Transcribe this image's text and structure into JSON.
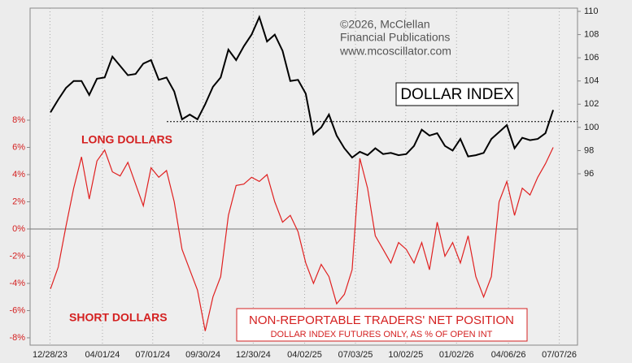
{
  "chart_data": {
    "type": "line",
    "credit": [
      "©2026, McClellan",
      "Financial Publications",
      "www.mcoscillator.com"
    ],
    "title": "DOLLAR INDEX",
    "annotations": [
      "LONG DOLLARS",
      "SHORT DOLLARS"
    ],
    "subtitle_box": [
      "NON-REPORTABLE TRADERS' NET POSITION",
      "DOLLAR INDEX FUTURES ONLY, AS % OF OPEN INT"
    ],
    "x": [
      "12/29/23",
      "01/12/24",
      "01/26/24",
      "02/09/24",
      "02/23/24",
      "03/08/24",
      "03/22/24",
      "04/05/24",
      "04/19/24",
      "05/03/24",
      "05/17/24",
      "05/31/24",
      "06/14/24",
      "06/28/24",
      "07/12/24",
      "07/26/24",
      "08/09/24",
      "08/23/24",
      "09/06/24",
      "09/20/24",
      "10/04/24",
      "10/18/24",
      "11/01/24",
      "11/15/24",
      "11/29/24",
      "12/13/24",
      "12/27/24",
      "01/10/25",
      "01/24/25",
      "02/07/25",
      "02/21/25",
      "03/07/25",
      "03/21/25",
      "04/04/25",
      "04/18/25",
      "05/02/25",
      "05/16/25",
      "05/30/25",
      "06/13/25",
      "06/27/25",
      "07/11/25",
      "07/25/25",
      "08/08/25",
      "08/22/25",
      "09/05/25",
      "09/19/25",
      "10/03/25",
      "10/17/25",
      "10/31/25",
      "11/14/25",
      "11/28/25",
      "12/12/25",
      "12/26/25",
      "01/09/26",
      "01/23/26",
      "02/06/26",
      "02/20/26",
      "03/06/26",
      "03/20/26",
      "04/03/26",
      "04/17/26",
      "05/01/26",
      "05/15/26",
      "05/29/26",
      "06/12/26",
      "06/26/26"
    ],
    "series": [
      {
        "name": "DOLLAR INDEX",
        "color": "#000000",
        "axis": "y2",
        "values": [
          101.3,
          102.4,
          103.4,
          104.0,
          104.0,
          102.8,
          104.2,
          104.3,
          106.1,
          105.3,
          104.5,
          104.6,
          105.5,
          105.8,
          104.1,
          104.3,
          103.1,
          100.7,
          101.1,
          100.7,
          102.0,
          103.5,
          104.3,
          106.7,
          105.8,
          107.0,
          108.0,
          109.5,
          107.4,
          108.0,
          106.6,
          104.0,
          104.1,
          102.9,
          99.4,
          100.0,
          101.1,
          99.3,
          98.2,
          97.4,
          97.9,
          97.6,
          98.2,
          97.7,
          97.8,
          97.6,
          97.7,
          98.4,
          99.8,
          99.3,
          99.5,
          98.4,
          98.0,
          99.0,
          97.5,
          97.6,
          97.8,
          99.0,
          99.6,
          100.2,
          98.2,
          99.1,
          98.9,
          99.0,
          99.5,
          101.5
        ]
      },
      {
        "name": "NON-REPORTABLE TRADERS' NET POSITION",
        "color": "#e02020",
        "axis": "y",
        "values": [
          -4.4,
          -2.8,
          0.2,
          3.0,
          5.3,
          2.2,
          5.0,
          5.8,
          4.2,
          3.9,
          4.9,
          3.3,
          1.7,
          4.5,
          3.8,
          4.3,
          2.0,
          -1.5,
          -3.0,
          -4.5,
          -7.5,
          -5.0,
          -3.5,
          1.0,
          3.2,
          3.3,
          3.8,
          3.5,
          4.0,
          2.0,
          0.5,
          1.0,
          -0.2,
          -2.5,
          -4.0,
          -2.6,
          -3.5,
          -5.5,
          -4.8,
          -3.0,
          5.2,
          3.0,
          -0.5,
          -1.5,
          -2.5,
          -1.0,
          -1.5,
          -2.5,
          -1.0,
          -3.0,
          0.5,
          -2.0,
          -1.0,
          -2.5,
          -0.5,
          -3.5,
          -5.0,
          -3.5,
          2.0,
          3.5,
          1.0,
          3.0,
          2.5,
          3.8,
          4.8,
          6.0
        ]
      }
    ],
    "xlim": [
      "11/22/23",
      "08/09/26"
    ],
    "xticks": [
      "12/28/23",
      "04/01/24",
      "07/01/24",
      "09/30/24",
      "12/30/24",
      "04/02/25",
      "07/03/25",
      "10/02/25",
      "01/02/26",
      "04/06/26",
      "07/07/26"
    ],
    "ylim": [
      -8.54,
      16.24
    ],
    "yticks": [
      {
        "value": -8,
        "label": "-8%"
      },
      {
        "value": -6,
        "label": "-6%"
      },
      {
        "value": -4,
        "label": "-4%"
      },
      {
        "value": -2,
        "label": "-2%"
      },
      {
        "value": 0,
        "label": "0%"
      },
      {
        "value": 2,
        "label": "2%"
      },
      {
        "value": 4,
        "label": "4%"
      },
      {
        "value": 6,
        "label": "6%"
      },
      {
        "value": 8,
        "label": "8%"
      }
    ],
    "y2lim": [
      81.23,
      110.28
    ],
    "y2ticks": [
      96,
      98,
      100,
      102,
      104,
      106,
      108,
      110
    ],
    "reference_line": 100.5,
    "zero_line": 0
  }
}
